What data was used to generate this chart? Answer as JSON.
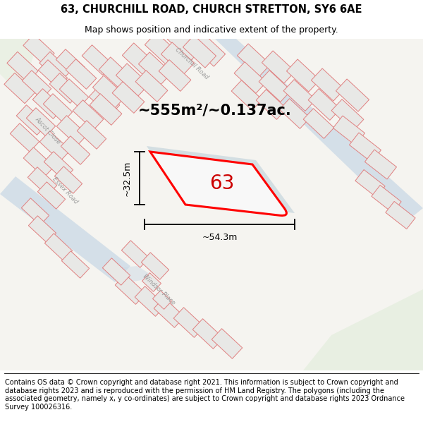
{
  "title": "63, CHURCHILL ROAD, CHURCH STRETTON, SY6 6AE",
  "subtitle": "Map shows position and indicative extent of the property.",
  "area_text": "~555m²/~0.137ac.",
  "label_63": "63",
  "dim_width": "~54.3m",
  "dim_height": "~32.5m",
  "footer": "Contains OS data © Crown copyright and database right 2021. This information is subject to Crown copyright and database rights 2023 and is reproduced with the permission of HM Land Registry. The polygons (including the associated geometry, namely x, y co-ordinates) are subject to Crown copyright and database rights 2023 Ordnance Survey 100026316.",
  "bg_map_color": "#f5f4f0",
  "plot_outline_color": "#ff0000",
  "plot_fill_color": "#ffffff",
  "plot_shadow_color": "#b8ccd8",
  "road_blue_color": "#ccdae6",
  "block_fill": "#e8e8e6",
  "block_edge": "#e08080",
  "road_line_color": "#c0c0c0",
  "title_fontsize": 10.5,
  "subtitle_fontsize": 9,
  "area_fontsize": 15,
  "label_fontsize": 20,
  "footer_fontsize": 7.0,
  "dim_fontsize": 9,
  "street_fontsize": 6
}
